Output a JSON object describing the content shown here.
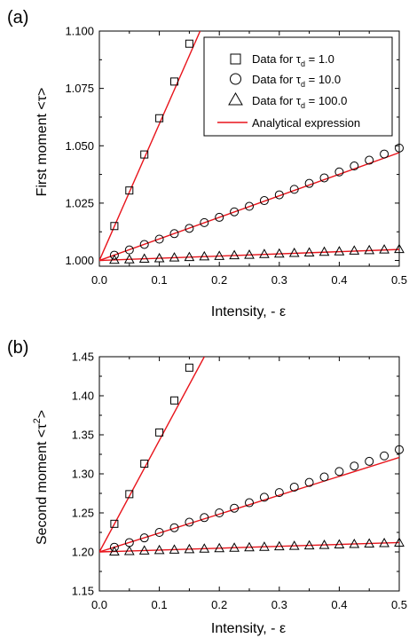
{
  "chart_data": [
    {
      "panel_label": "(a)",
      "type": "scatter",
      "xlabel": "Intensity, - ε",
      "ylabel": "First moment  <τ>",
      "xlim": [
        0.0,
        0.5
      ],
      "ylim": [
        0.9975,
        1.1
      ],
      "x_ticks": [
        "0.0",
        "0.1",
        "0.2",
        "0.3",
        "0.4",
        "0.5"
      ],
      "y_ticks": [
        "1.000",
        "1.025",
        "1.050",
        "1.075",
        "1.100"
      ],
      "legend": {
        "placement": "top-right",
        "entries": [
          {
            "marker": "square",
            "text_prefix": "Data for τ",
            "subscript": "d",
            "text_suffix": " = 1.0"
          },
          {
            "marker": "circle",
            "text_prefix": "Data for τ",
            "subscript": "d",
            "text_suffix": " = 10.0"
          },
          {
            "marker": "triangle",
            "text_prefix": "Data for τ",
            "subscript": "d",
            "text_suffix": " = 100.0"
          },
          {
            "marker": "line",
            "text_prefix": "Analytical expression",
            "subscript": "",
            "text_suffix": ""
          }
        ]
      },
      "series": [
        {
          "marker": "square",
          "x": [
            0.025,
            0.05,
            0.075,
            0.1,
            0.125,
            0.15
          ],
          "y": [
            1.015,
            1.0305,
            1.0462,
            1.062,
            1.078,
            1.0945
          ]
        },
        {
          "marker": "circle",
          "x": [
            0.025,
            0.05,
            0.075,
            0.1,
            0.125,
            0.15,
            0.175,
            0.2,
            0.225,
            0.25,
            0.275,
            0.3,
            0.325,
            0.35,
            0.375,
            0.4,
            0.425,
            0.45,
            0.475,
            0.5
          ],
          "y": [
            1.0023,
            1.0046,
            1.007,
            1.0093,
            1.0117,
            1.014,
            1.0165,
            1.0188,
            1.0212,
            1.0236,
            1.0261,
            1.0286,
            1.031,
            1.0336,
            1.036,
            1.0386,
            1.0412,
            1.0437,
            1.0464,
            1.049
          ]
        },
        {
          "marker": "triangle",
          "x": [
            0.025,
            0.05,
            0.075,
            0.1,
            0.125,
            0.15,
            0.175,
            0.2,
            0.225,
            0.25,
            0.275,
            0.3,
            0.325,
            0.35,
            0.375,
            0.4,
            0.425,
            0.45,
            0.475,
            0.5
          ],
          "y": [
            1.0003,
            1.0005,
            1.0008,
            1.001,
            1.0013,
            1.0015,
            1.0018,
            1.002,
            1.0023,
            1.0025,
            1.0028,
            1.003,
            1.0033,
            1.0035,
            1.0038,
            1.004,
            1.0043,
            1.0045,
            1.0048,
            1.005
          ]
        }
      ],
      "fit_lines": [
        {
          "x": [
            0.0,
            0.168
          ],
          "y": [
            1.0,
            1.1
          ]
        },
        {
          "x": [
            0.0,
            0.5
          ],
          "y": [
            1.0,
            1.047
          ]
        },
        {
          "x": [
            0.0,
            0.5
          ],
          "y": [
            1.0,
            1.0048
          ]
        }
      ],
      "line_color": "#e8141b"
    },
    {
      "panel_label": "(b)",
      "type": "scatter",
      "xlabel": "Intensity, - ε",
      "ylabel_main": "Second moment  <τ",
      "ylabel_sup": "2",
      "ylabel_end": ">",
      "xlim": [
        0.0,
        0.5
      ],
      "ylim": [
        1.15,
        1.45
      ],
      "x_ticks": [
        "0.0",
        "0.1",
        "0.2",
        "0.3",
        "0.4",
        "0.5"
      ],
      "y_ticks": [
        "1.15",
        "1.20",
        "1.25",
        "1.30",
        "1.35",
        "1.40",
        "1.45"
      ],
      "series": [
        {
          "marker": "square",
          "x": [
            0.025,
            0.05,
            0.075,
            0.1,
            0.125,
            0.15
          ],
          "y": [
            1.236,
            1.274,
            1.313,
            1.353,
            1.394,
            1.436
          ]
        },
        {
          "marker": "circle",
          "x": [
            0.025,
            0.05,
            0.075,
            0.1,
            0.125,
            0.15,
            0.175,
            0.2,
            0.225,
            0.25,
            0.275,
            0.3,
            0.325,
            0.35,
            0.375,
            0.4,
            0.425,
            0.45,
            0.475,
            0.5
          ],
          "y": [
            1.206,
            1.212,
            1.218,
            1.225,
            1.231,
            1.238,
            1.244,
            1.25,
            1.256,
            1.263,
            1.27,
            1.276,
            1.283,
            1.289,
            1.296,
            1.303,
            1.31,
            1.316,
            1.323,
            1.331
          ]
        },
        {
          "marker": "triangle",
          "x": [
            0.025,
            0.05,
            0.075,
            0.1,
            0.125,
            0.15,
            0.175,
            0.2,
            0.225,
            0.25,
            0.275,
            0.3,
            0.325,
            0.35,
            0.375,
            0.4,
            0.425,
            0.45,
            0.475,
            0.5
          ],
          "y": [
            1.2006,
            1.2012,
            1.2018,
            1.2024,
            1.203,
            1.2036,
            1.2042,
            1.2048,
            1.2054,
            1.206,
            1.2066,
            1.2072,
            1.2078,
            1.2084,
            1.209,
            1.2096,
            1.2102,
            1.2108,
            1.2114,
            1.212
          ]
        }
      ],
      "fit_lines": [
        {
          "x": [
            0.0,
            0.175
          ],
          "y": [
            1.2,
            1.45
          ]
        },
        {
          "x": [
            0.0,
            0.5
          ],
          "y": [
            1.2,
            1.321
          ]
        },
        {
          "x": [
            0.0,
            0.5
          ],
          "y": [
            1.2,
            1.212
          ]
        }
      ],
      "line_color": "#e8141b"
    }
  ]
}
